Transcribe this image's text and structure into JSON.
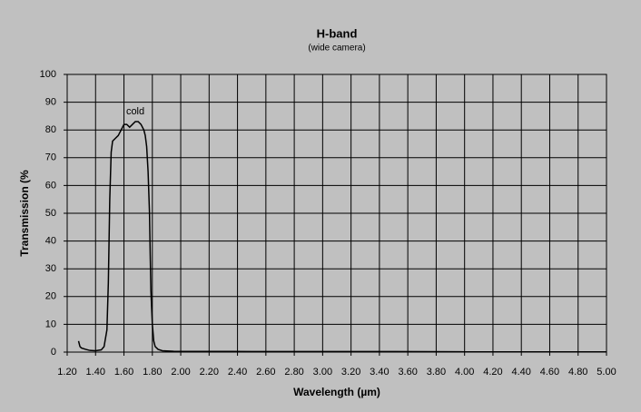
{
  "chart_data": {
    "type": "line",
    "title": "H-band",
    "subtitle": "(wide camera)",
    "x_label": "Wavelength (µm)",
    "y_label": "Transmission (%",
    "annotation": "cold",
    "grid": true,
    "x": [
      1.28,
      1.29,
      1.3,
      1.33,
      1.36,
      1.4,
      1.44,
      1.46,
      1.48,
      1.49,
      1.5,
      1.51,
      1.52,
      1.54,
      1.56,
      1.58,
      1.6,
      1.62,
      1.64,
      1.66,
      1.68,
      1.7,
      1.72,
      1.74,
      1.75,
      1.76,
      1.77,
      1.78,
      1.785,
      1.79,
      1.8,
      1.81,
      1.82,
      1.84,
      1.87,
      1.95,
      2.5,
      3.0,
      3.5,
      4.0,
      4.5,
      5.0
    ],
    "series": [
      {
        "name": "cold",
        "color": "#000000",
        "values": [
          4,
          2,
          1.5,
          1,
          0.6,
          0.5,
          0.8,
          2,
          8,
          25,
          55,
          72,
          76,
          77,
          78,
          80,
          82,
          82,
          81,
          82,
          83,
          83,
          82,
          80,
          78,
          74,
          65,
          50,
          35,
          22,
          10,
          4,
          2,
          1,
          0.5,
          0.3,
          0.2,
          0.2,
          0.2,
          0.1,
          0.1,
          0.1
        ]
      }
    ],
    "xlim": [
      1.2,
      5.0
    ],
    "ylim": [
      0,
      100
    ],
    "xticks": [
      {
        "value": 1.2,
        "label": "1.20"
      },
      {
        "value": 1.4,
        "label": "1.40"
      },
      {
        "value": 1.6,
        "label": "1.60"
      },
      {
        "value": 1.8,
        "label": "1.80"
      },
      {
        "value": 2.0,
        "label": "2.00"
      },
      {
        "value": 2.2,
        "label": "2.20"
      },
      {
        "value": 2.4,
        "label": "2.40"
      },
      {
        "value": 2.6,
        "label": "2.60"
      },
      {
        "value": 2.8,
        "label": "2.80"
      },
      {
        "value": 3.0,
        "label": "3.00"
      },
      {
        "value": 3.2,
        "label": "3.20"
      },
      {
        "value": 3.4,
        "label": "3.40"
      },
      {
        "value": 3.6,
        "label": "3.60"
      },
      {
        "value": 3.8,
        "label": "3.80"
      },
      {
        "value": 4.0,
        "label": "4.00"
      },
      {
        "value": 4.2,
        "label": "4.20"
      },
      {
        "value": 4.4,
        "label": "4.40"
      },
      {
        "value": 4.6,
        "label": "4.60"
      },
      {
        "value": 4.8,
        "label": "4.80"
      },
      {
        "value": 5.0,
        "label": "5.00"
      }
    ],
    "yticks": [
      0,
      10,
      20,
      30,
      40,
      50,
      60,
      70,
      80,
      90,
      100
    ]
  }
}
